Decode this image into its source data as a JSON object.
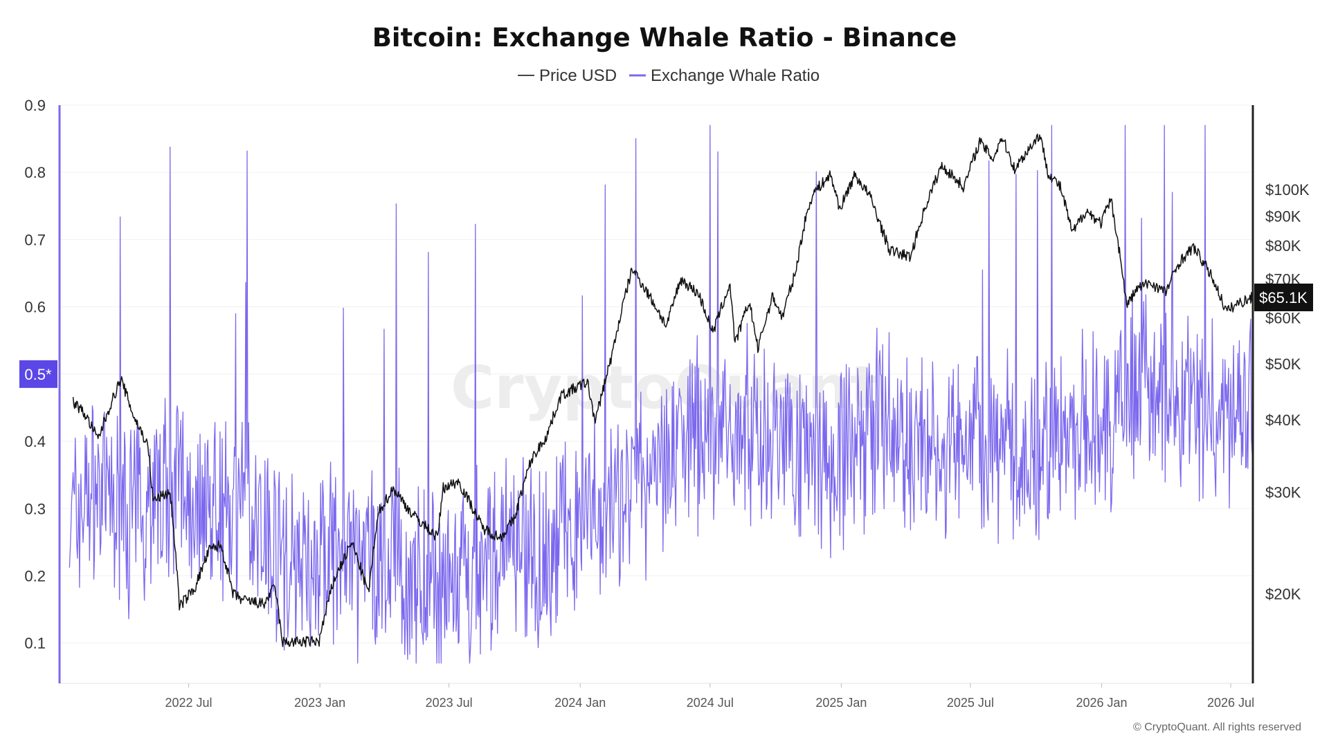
{
  "chart_data": {
    "type": "line",
    "title": "Bitcoin: Exchange Whale Ratio - Binance",
    "legend": [
      "Price USD",
      "Exchange Whale Ratio"
    ],
    "legend_placement": "top-center",
    "watermark": "CryptoQuant",
    "copyright": "© CryptoQuant. All rights reserved",
    "colors": {
      "price": "#111111",
      "whale_ratio": "#7b68ee",
      "badge_left": "#5b46e6",
      "badge_right": "#111111"
    },
    "x_ticks": [
      "2022 Jul",
      "2023 Jan",
      "2023 Jul",
      "2024 Jan",
      "2024 Jul",
      "2025 Jan",
      "2025 Jul",
      "2026 Jan",
      "2026 Jul"
    ],
    "x_range": [
      "2022-01",
      "2026-08"
    ],
    "y_left": {
      "label": "",
      "ticks": [
        "0.9",
        "0.8",
        "0.7",
        "0.6",
        "0.5",
        "0.4",
        "0.3",
        "0.2",
        "0.1"
      ],
      "ylim": [
        0.04,
        0.9
      ]
    },
    "y_right": {
      "label": "",
      "scale": "log",
      "ticks": [
        "$100K",
        "$90K",
        "$80K",
        "$70K",
        "$60K",
        "$50K",
        "$40K",
        "$30K",
        "$20K"
      ],
      "ylim": [
        14000,
        140000
      ]
    },
    "current_whale_badge": "0.5*",
    "current_price_badge": "$65.1K",
    "series": [
      {
        "name": "Price USD",
        "points": [
          [
            "2022-01-20",
            43000
          ],
          [
            "2022-02-05",
            41000
          ],
          [
            "2022-02-24",
            37000
          ],
          [
            "2022-03-28",
            47000
          ],
          [
            "2022-04-15",
            40500
          ],
          [
            "2022-05-05",
            36000
          ],
          [
            "2022-05-12",
            29000
          ],
          [
            "2022-06-05",
            30000
          ],
          [
            "2022-06-18",
            19000
          ],
          [
            "2022-07-10",
            20500
          ],
          [
            "2022-07-30",
            23800
          ],
          [
            "2022-08-15",
            24300
          ],
          [
            "2022-09-01",
            20000
          ],
          [
            "2022-09-15",
            19500
          ],
          [
            "2022-10-15",
            19200
          ],
          [
            "2022-10-30",
            20600
          ],
          [
            "2022-11-09",
            16500
          ],
          [
            "2022-11-25",
            16500
          ],
          [
            "2022-12-31",
            16550
          ],
          [
            "2023-01-20",
            21000
          ],
          [
            "2023-02-15",
            24500
          ],
          [
            "2023-03-10",
            20000
          ],
          [
            "2023-03-25",
            27800
          ],
          [
            "2023-04-14",
            30400
          ],
          [
            "2023-05-10",
            27500
          ],
          [
            "2023-06-15",
            25000
          ],
          [
            "2023-06-23",
            30500
          ],
          [
            "2023-07-14",
            31300
          ],
          [
            "2023-08-17",
            26000
          ],
          [
            "2023-09-11",
            25000
          ],
          [
            "2023-10-01",
            27000
          ],
          [
            "2023-10-24",
            34000
          ],
          [
            "2023-11-15",
            37500
          ],
          [
            "2023-12-05",
            44000
          ],
          [
            "2024-01-11",
            46500
          ],
          [
            "2024-01-22",
            39500
          ],
          [
            "2024-02-15",
            52000
          ],
          [
            "2024-03-14",
            73000
          ],
          [
            "2024-04-15",
            63000
          ],
          [
            "2024-05-01",
            58000
          ],
          [
            "2024-05-21",
            70000
          ],
          [
            "2024-06-15",
            66000
          ],
          [
            "2024-07-05",
            56500
          ],
          [
            "2024-07-29",
            68500
          ],
          [
            "2024-08-05",
            54000
          ],
          [
            "2024-08-25",
            64000
          ],
          [
            "2024-09-06",
            53000
          ],
          [
            "2024-09-27",
            65500
          ],
          [
            "2024-10-10",
            60000
          ],
          [
            "2024-10-29",
            72000
          ],
          [
            "2024-11-11",
            88000
          ],
          [
            "2024-11-22",
            98500
          ],
          [
            "2024-12-17",
            106000
          ],
          [
            "2024-12-30",
            92500
          ],
          [
            "2025-01-20",
            106000
          ],
          [
            "2025-02-10",
            97500
          ],
          [
            "2025-03-01",
            84000
          ],
          [
            "2025-03-10",
            78500
          ],
          [
            "2025-04-08",
            76500
          ],
          [
            "2025-05-01",
            95000
          ],
          [
            "2025-05-22",
            110000
          ],
          [
            "2025-06-22",
            101000
          ],
          [
            "2025-07-14",
            121000
          ],
          [
            "2025-08-02",
            113000
          ],
          [
            "2025-08-14",
            123500
          ],
          [
            "2025-09-01",
            108500
          ],
          [
            "2025-10-06",
            124500
          ],
          [
            "2025-10-18",
            107000
          ],
          [
            "2025-11-04",
            101000
          ],
          [
            "2025-11-21",
            84000
          ],
          [
            "2025-12-10",
            92000
          ],
          [
            "2025-12-31",
            87500
          ],
          [
            "2026-01-14",
            96000
          ],
          [
            "2026-02-05",
            63000
          ],
          [
            "2026-02-20",
            67500
          ],
          [
            "2026-03-10",
            69000
          ],
          [
            "2026-04-01",
            66500
          ],
          [
            "2026-04-20",
            75000
          ],
          [
            "2026-05-10",
            79500
          ],
          [
            "2026-06-05",
            70500
          ],
          [
            "2026-06-25",
            61500
          ],
          [
            "2026-07-10",
            63500
          ],
          [
            "2026-08-01",
            65100
          ]
        ]
      },
      {
        "name": "Exchange Whale Ratio",
        "points": [
          [
            "2022-01-15",
            0.28
          ],
          [
            "2022-02-15",
            0.33
          ],
          [
            "2022-03-15",
            0.31
          ],
          [
            "2022-04-15",
            0.29
          ],
          [
            "2022-05-15",
            0.33
          ],
          [
            "2022-06-15",
            0.34
          ],
          [
            "2022-07-15",
            0.3
          ],
          [
            "2022-08-15",
            0.31
          ],
          [
            "2022-09-15",
            0.3
          ],
          [
            "2022-10-15",
            0.28
          ],
          [
            "2022-11-15",
            0.22
          ],
          [
            "2022-12-15",
            0.21
          ],
          [
            "2023-01-15",
            0.23
          ],
          [
            "2023-02-15",
            0.21
          ],
          [
            "2023-03-15",
            0.22
          ],
          [
            "2023-04-15",
            0.21
          ],
          [
            "2023-05-15",
            0.2
          ],
          [
            "2023-06-15",
            0.18
          ],
          [
            "2023-07-15",
            0.17
          ],
          [
            "2023-08-15",
            0.22
          ],
          [
            "2023-09-15",
            0.23
          ],
          [
            "2023-10-15",
            0.24
          ],
          [
            "2023-11-15",
            0.24
          ],
          [
            "2023-12-15",
            0.27
          ],
          [
            "2024-01-15",
            0.29
          ],
          [
            "2024-02-15",
            0.3
          ],
          [
            "2024-03-15",
            0.32
          ],
          [
            "2024-04-15",
            0.37
          ],
          [
            "2024-05-15",
            0.4
          ],
          [
            "2024-06-15",
            0.41
          ],
          [
            "2024-07-15",
            0.42
          ],
          [
            "2024-08-15",
            0.43
          ],
          [
            "2024-09-15",
            0.41
          ],
          [
            "2024-10-15",
            0.41
          ],
          [
            "2024-11-15",
            0.39
          ],
          [
            "2024-12-15",
            0.37
          ],
          [
            "2025-01-15",
            0.4
          ],
          [
            "2025-02-15",
            0.42
          ],
          [
            "2025-03-15",
            0.41
          ],
          [
            "2025-04-15",
            0.39
          ],
          [
            "2025-05-15",
            0.38
          ],
          [
            "2025-06-15",
            0.39
          ],
          [
            "2025-07-15",
            0.4
          ],
          [
            "2025-08-15",
            0.39
          ],
          [
            "2025-09-15",
            0.38
          ],
          [
            "2025-10-15",
            0.4
          ],
          [
            "2025-11-15",
            0.41
          ],
          [
            "2025-12-15",
            0.41
          ],
          [
            "2026-01-15",
            0.42
          ],
          [
            "2026-02-15",
            0.48
          ],
          [
            "2026-03-15",
            0.47
          ],
          [
            "2026-04-15",
            0.46
          ],
          [
            "2026-05-15",
            0.45
          ],
          [
            "2026-06-15",
            0.44
          ],
          [
            "2026-07-15",
            0.45
          ],
          [
            "2026-08-01",
            0.5
          ]
        ]
      }
    ]
  }
}
